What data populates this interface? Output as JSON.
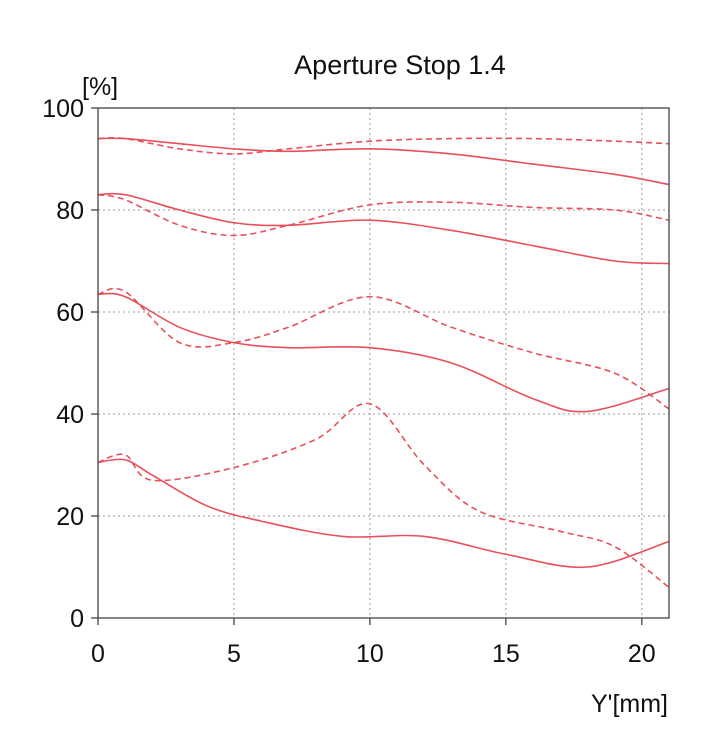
{
  "chart_data": {
    "type": "line",
    "title": "Aperture Stop 1.4",
    "xlabel": "Y'[mm]",
    "ylabel": "[%]",
    "xlim": [
      0,
      21
    ],
    "ylim": [
      0,
      100
    ],
    "xticks": [
      0,
      5,
      10,
      15,
      20
    ],
    "yticks": [
      0,
      20,
      40,
      60,
      80,
      100
    ],
    "grid": true,
    "color": "#e8505b",
    "series": [
      {
        "style": "solid",
        "x": [
          0,
          1,
          3,
          5,
          7,
          10,
          13,
          16,
          19,
          21
        ],
        "y": [
          94,
          94,
          93,
          92,
          91.5,
          92,
          91,
          89,
          87,
          85
        ]
      },
      {
        "style": "dashed",
        "x": [
          0,
          1,
          3,
          5,
          7,
          10,
          13,
          16,
          19,
          21
        ],
        "y": [
          94,
          94,
          92,
          91,
          92,
          93.5,
          94,
          94,
          93.5,
          93
        ]
      },
      {
        "style": "solid",
        "x": [
          0,
          1,
          3,
          5,
          7,
          10,
          13,
          16,
          19,
          21
        ],
        "y": [
          83,
          83,
          80,
          77.5,
          77,
          78,
          76,
          73,
          70,
          69.5
        ]
      },
      {
        "style": "dashed",
        "x": [
          0,
          1,
          3,
          5,
          7,
          10,
          13,
          16,
          19,
          21
        ],
        "y": [
          83,
          82,
          77,
          75,
          77,
          81,
          81.5,
          80.5,
          80,
          78
        ]
      },
      {
        "style": "solid",
        "x": [
          0,
          1,
          3,
          5,
          7,
          10,
          13,
          16,
          18,
          21
        ],
        "y": [
          63.5,
          63,
          57,
          54,
          53,
          53,
          50,
          43,
          40.5,
          45
        ]
      },
      {
        "style": "dashed",
        "x": [
          0,
          1,
          3,
          5,
          7,
          10,
          13,
          16,
          19,
          21
        ],
        "y": [
          63.5,
          64,
          54,
          54,
          57,
          63,
          57,
          52,
          48,
          41
        ]
      },
      {
        "style": "solid",
        "x": [
          0,
          1,
          2,
          4,
          6,
          9,
          12,
          15,
          18,
          21
        ],
        "y": [
          30.5,
          31,
          28,
          22,
          19,
          16,
          16,
          12.5,
          10,
          15
        ]
      },
      {
        "style": "dashed",
        "x": [
          0,
          1,
          2,
          5,
          8,
          10,
          12,
          14,
          17,
          19,
          21
        ],
        "y": [
          30.5,
          32,
          27,
          29.5,
          35,
          42,
          30,
          21,
          17,
          14,
          6
        ]
      }
    ]
  }
}
